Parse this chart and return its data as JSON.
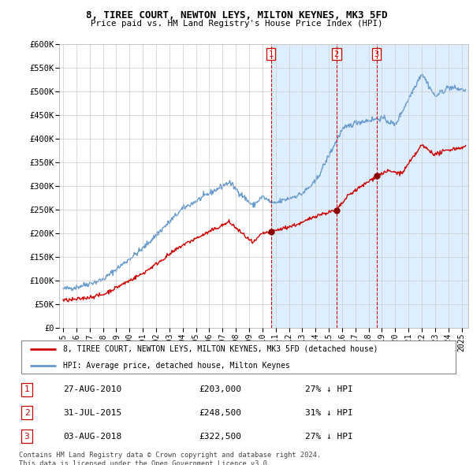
{
  "title": "8, TIREE COURT, NEWTON LEYS, MILTON KEYNES, MK3 5FD",
  "subtitle": "Price paid vs. HM Land Registry's House Price Index (HPI)",
  "ylabel_ticks": [
    "£0",
    "£50K",
    "£100K",
    "£150K",
    "£200K",
    "£250K",
    "£300K",
    "£350K",
    "£400K",
    "£450K",
    "£500K",
    "£550K",
    "£600K"
  ],
  "ytick_values": [
    0,
    50000,
    100000,
    150000,
    200000,
    250000,
    300000,
    350000,
    400000,
    450000,
    500000,
    550000,
    600000
  ],
  "xlim_start": 1994.7,
  "xlim_end": 2025.5,
  "ylim_min": 0,
  "ylim_max": 600000,
  "transaction_color": "#cc0000",
  "hpi_color": "#6699cc",
  "shade_color": "#ddeeff",
  "transaction_label": "8, TIREE COURT, NEWTON LEYS, MILTON KEYNES, MK3 5FD (detached house)",
  "hpi_label": "HPI: Average price, detached house, Milton Keynes",
  "transactions": [
    {
      "label": "1",
      "date": 2010.65,
      "price": 203000,
      "note": "27% ↓ HPI",
      "date_str": "27-AUG-2010",
      "price_str": "£203,000"
    },
    {
      "label": "2",
      "date": 2015.58,
      "price": 248500,
      "note": "31% ↓ HPI",
      "date_str": "31-JUL-2015",
      "price_str": "£248,500"
    },
    {
      "label": "3",
      "date": 2018.59,
      "price": 322500,
      "note": "27% ↓ HPI",
      "date_str": "03-AUG-2018",
      "price_str": "£322,500"
    }
  ],
  "footer": "Contains HM Land Registry data © Crown copyright and database right 2024.\nThis data is licensed under the Open Government Licence v3.0.",
  "background_color": "#ffffff",
  "grid_color": "#cccccc",
  "xticks": [
    1995,
    1996,
    1997,
    1998,
    1999,
    2000,
    2001,
    2002,
    2003,
    2004,
    2005,
    2006,
    2007,
    2008,
    2009,
    2010,
    2011,
    2012,
    2013,
    2014,
    2015,
    2016,
    2017,
    2018,
    2019,
    2020,
    2021,
    2022,
    2023,
    2024,
    2025
  ]
}
